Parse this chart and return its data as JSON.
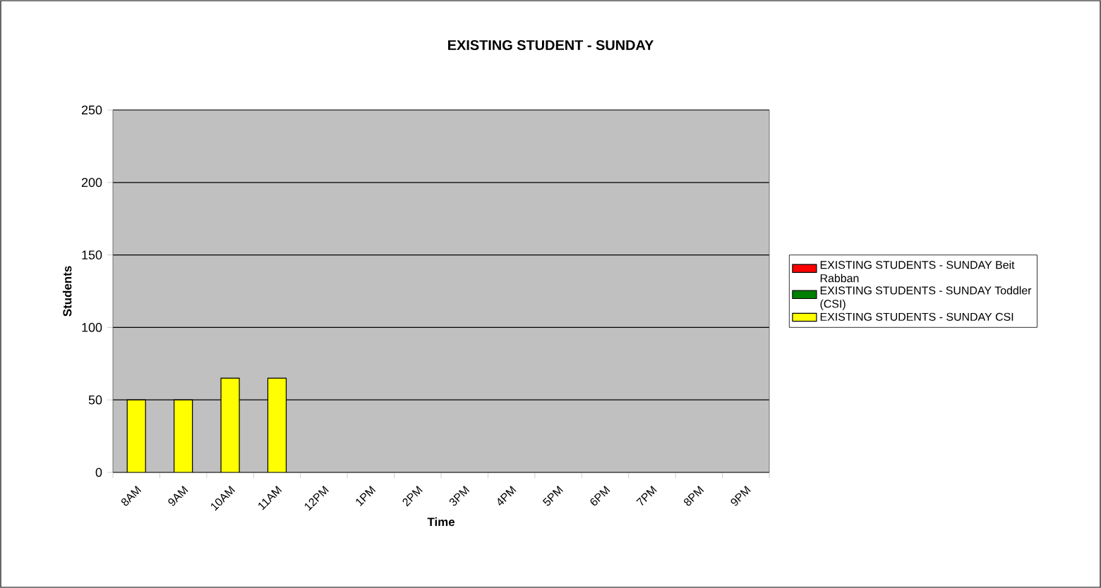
{
  "chart_data": {
    "type": "bar",
    "title": "EXISTING STUDENT - SUNDAY",
    "xlabel": "Time",
    "ylabel": "Students",
    "categories": [
      "8AM",
      "9AM",
      "10AM",
      "11AM",
      "12PM",
      "1PM",
      "2PM",
      "3PM",
      "4PM",
      "5PM",
      "6PM",
      "7PM",
      "8PM",
      "9PM"
    ],
    "series": [
      {
        "name": "EXISTING STUDENTS - SUNDAY Beit Rabban",
        "color": "#ff0000",
        "values": [
          null,
          null,
          null,
          null,
          null,
          null,
          null,
          null,
          null,
          null,
          null,
          null,
          null,
          null
        ]
      },
      {
        "name": "EXISTING STUDENTS - SUNDAY Toddler (CSI)",
        "color": "#008000",
        "values": [
          null,
          null,
          null,
          null,
          null,
          null,
          null,
          null,
          null,
          null,
          null,
          null,
          null,
          null
        ]
      },
      {
        "name": "EXISTING STUDENTS - SUNDAY CSI",
        "color": "#ffff00",
        "values": [
          50,
          50,
          65,
          65,
          null,
          null,
          null,
          null,
          null,
          null,
          null,
          null,
          null,
          null
        ]
      }
    ],
    "ylim": [
      0,
      250
    ],
    "yticks": [
      0,
      50,
      100,
      150,
      200,
      250
    ],
    "grid": "y",
    "legend": "right"
  }
}
